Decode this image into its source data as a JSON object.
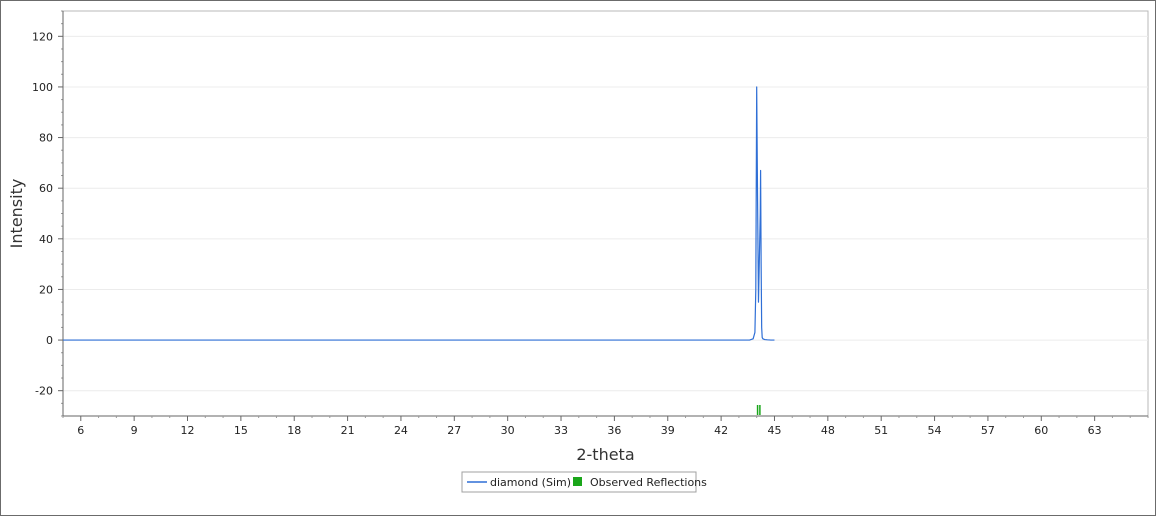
{
  "chart_data": {
    "type": "line",
    "xlabel": "2-theta",
    "ylabel": "Intensity",
    "xlim": [
      5.0,
      66.0
    ],
    "ylim": [
      -30,
      130
    ],
    "x_ticks": [
      6,
      9,
      12,
      15,
      18,
      21,
      24,
      27,
      30,
      33,
      36,
      39,
      42,
      45,
      48,
      51,
      54,
      57,
      60,
      63
    ],
    "y_ticks": [
      -20,
      0,
      20,
      40,
      60,
      80,
      100,
      120
    ],
    "grid": "horizontal",
    "legend": "bottom-center",
    "series": [
      {
        "name": "diamond (Sim)",
        "color": "#2f6fd6",
        "x": [
          5.0,
          43.6,
          43.8,
          43.9,
          43.95,
          44.0,
          44.05,
          44.1,
          44.15,
          44.2,
          44.22,
          44.25,
          44.28,
          44.31,
          44.35,
          44.45,
          44.6,
          44.8,
          45.0
        ],
        "y": [
          0,
          0,
          0.5,
          3,
          20,
          100,
          55,
          15,
          32,
          50,
          67,
          30,
          5,
          1,
          0.5,
          0.2,
          0.1,
          0,
          0
        ]
      }
    ],
    "observed_reflections": {
      "name": "Observed Reflections",
      "color": "#1aa61a",
      "x": [
        44.05,
        44.18
      ]
    }
  }
}
